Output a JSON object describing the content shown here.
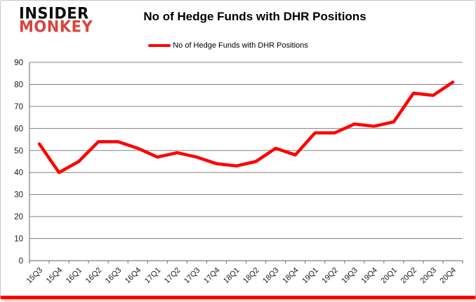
{
  "header": {
    "logo": {
      "line1": "INSIDER",
      "line2": "MONKEY"
    },
    "title": "No of Hedge Funds with DHR Positions"
  },
  "legend": {
    "label": "No of Hedge Funds with DHR Positions"
  },
  "colors": {
    "line": "#FF0000",
    "logo_red": "#D6453C",
    "bottom_border": "#FB0000",
    "gridline": "#808080",
    "axis_text": "#1a1a1a"
  },
  "chart_data": {
    "type": "line",
    "title": "No of Hedge Funds with DHR Positions",
    "categories": [
      "15Q3",
      "15Q4",
      "16Q1",
      "16Q2",
      "16Q3",
      "16Q4",
      "17Q1",
      "17Q2",
      "17Q3",
      "17Q4",
      "18Q1",
      "18Q2",
      "18Q3",
      "18Q4",
      "19Q1",
      "19Q2",
      "19Q3",
      "19Q4",
      "20Q1",
      "20Q2",
      "20Q3",
      "20Q4"
    ],
    "series": [
      {
        "name": "No of Hedge Funds with DHR Positions",
        "color": "#FF0000",
        "values": [
          53,
          40,
          45,
          54,
          54,
          51,
          47,
          49,
          47,
          44,
          43,
          45,
          51,
          48,
          58,
          58,
          62,
          61,
          63,
          76,
          75,
          81
        ]
      }
    ],
    "xlabel": "",
    "ylabel": "",
    "ylim": [
      0,
      90
    ],
    "y_ticks": [
      0,
      10,
      20,
      30,
      40,
      50,
      60,
      70,
      80,
      90
    ],
    "grid": "horizontal",
    "legend_position": "top"
  }
}
